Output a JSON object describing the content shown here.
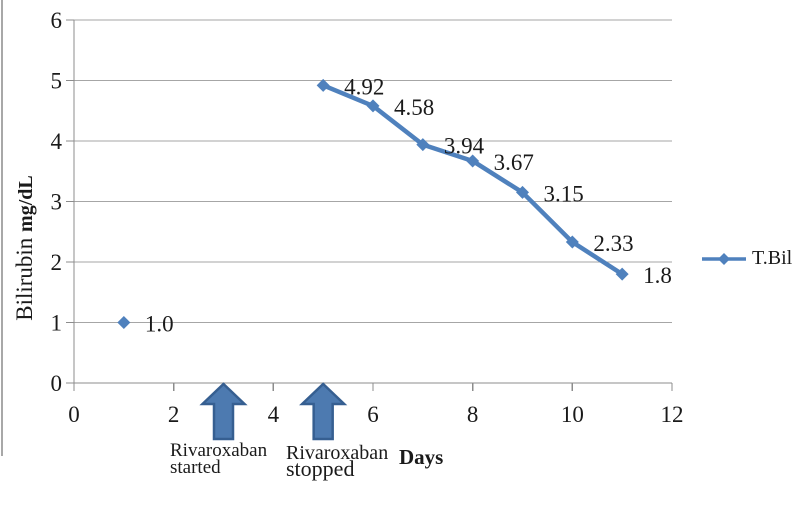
{
  "chart_data": {
    "type": "line",
    "title": "",
    "xlabel": "Days",
    "ylabel": "Bilirubin mg/dL",
    "ylabel_parts": {
      "normal": "Bilirubin ",
      "bold": "mg/dL"
    },
    "xlim": [
      0,
      12
    ],
    "ylim": [
      0,
      6
    ],
    "x_ticks": [
      0,
      2,
      4,
      6,
      8,
      10,
      12
    ],
    "y_ticks": [
      0,
      1,
      2,
      3,
      4,
      5,
      6
    ],
    "grid": "horizontal",
    "legend_position": "right",
    "series": [
      {
        "name": "T.Bil",
        "marker": "diamond",
        "x": [
          1,
          5,
          6,
          7,
          8,
          9,
          10,
          11
        ],
        "values": [
          1.0,
          4.92,
          4.58,
          3.94,
          3.67,
          3.15,
          2.33,
          1.8
        ],
        "point_labels": [
          "1.0",
          "4.92",
          "4.58",
          "3.94",
          "3.67",
          "3.15",
          "2.33",
          "1.8"
        ]
      }
    ],
    "annotations": [
      {
        "x_day": 3,
        "shape": "up-arrow",
        "line1": "Rivaroxaban",
        "line2": "started"
      },
      {
        "x_day": 5,
        "shape": "up-arrow",
        "line1": "Rivaroxaban",
        "line2": "stopped"
      }
    ],
    "colors": {
      "series": "#4f81bd",
      "arrow_fill": "#4d7ab0",
      "arrow_stroke": "#365f91",
      "gridline": "#a6a6a6",
      "axis": "#8c8c8c",
      "text": "#1a1a1a"
    }
  }
}
